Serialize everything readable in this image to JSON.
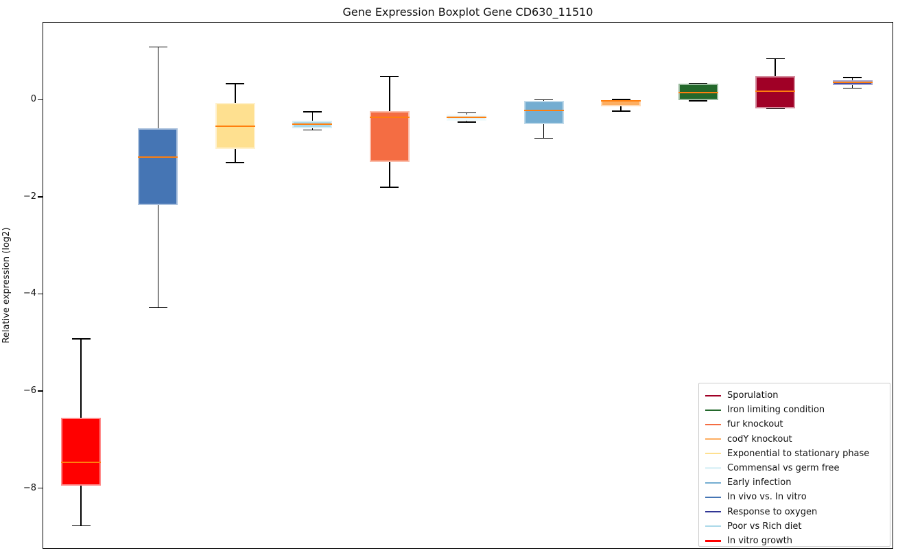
{
  "chart_data": {
    "type": "boxplot",
    "title": "Gene Expression Boxplot Gene CD630_11510",
    "ylabel": "Relative expression (log2)",
    "xlabel": "",
    "ylim": [
      -9.25,
      1.6
    ],
    "yticks": [
      0,
      -2,
      -4,
      -6,
      -8
    ],
    "ytick_labels": [
      "0",
      "−2",
      "−4",
      "−6",
      "−8"
    ],
    "xtick_labels": [],
    "grid": false,
    "legend_position": "lower right",
    "median_color": "#ff7f0e",
    "whisker_color": "#000000",
    "boxes": [
      {
        "condition": "In vitro growth",
        "color": "#ff0000",
        "whisker_low": -8.76,
        "q1": -7.93,
        "median": -7.46,
        "q3": -6.54,
        "whisker_high": -4.91
      },
      {
        "condition": "In vivo vs. In vitro",
        "color": "#4575b4",
        "whisker_low": -4.27,
        "q1": -2.16,
        "median": -1.17,
        "q3": -0.58,
        "whisker_high": 1.1
      },
      {
        "condition": "Exponential to stationary phase",
        "color": "#fee090",
        "whisker_low": -1.28,
        "q1": -1.0,
        "median": -0.54,
        "q3": -0.05,
        "whisker_high": 0.34
      },
      {
        "condition": "Poor vs Rich diet",
        "color": "#abd9e9",
        "whisker_low": -0.61,
        "q1": -0.57,
        "median": -0.49,
        "q3": -0.42,
        "whisker_high": -0.24
      },
      {
        "condition": "fur knockout",
        "color": "#f46d43",
        "whisker_low": -1.79,
        "q1": -1.27,
        "median": -0.35,
        "q3": -0.22,
        "whisker_high": 0.49
      },
      {
        "condition": "Commensal vs germ free",
        "color": "#e0f3f8",
        "whisker_low": -0.45,
        "q1": -0.42,
        "median": -0.35,
        "q3": -0.29,
        "whisker_high": -0.26
      },
      {
        "condition": "Early infection",
        "color": "#74add1",
        "whisker_low": -0.78,
        "q1": -0.49,
        "median": -0.21,
        "q3": -0.01,
        "whisker_high": 0.01
      },
      {
        "condition": "codY knockout",
        "color": "#fdae61",
        "whisker_low": -0.22,
        "q1": -0.13,
        "median": -0.01,
        "q3": 0.01,
        "whisker_high": 0.02
      },
      {
        "condition": "Iron limiting condition",
        "color": "#23682b",
        "whisker_low": -0.01,
        "q1": 0.0,
        "median": 0.16,
        "q3": 0.34,
        "whisker_high": 0.35
      },
      {
        "condition": "Sporulation",
        "color": "#a00026",
        "whisker_low": -0.17,
        "q1": -0.16,
        "median": 0.19,
        "q3": 0.5,
        "whisker_high": 0.86
      },
      {
        "condition": "Response to oxygen",
        "color": "#313695",
        "whisker_low": 0.25,
        "q1": 0.31,
        "median": 0.37,
        "q3": 0.41,
        "whisker_high": 0.47
      }
    ],
    "legend": [
      {
        "label": "Sporulation",
        "color": "#a00026"
      },
      {
        "label": "Iron limiting condition",
        "color": "#23682b"
      },
      {
        "label": "fur knockout",
        "color": "#f46d43"
      },
      {
        "label": "codY knockout",
        "color": "#fdae61"
      },
      {
        "label": "Exponential to stationary phase",
        "color": "#fee090"
      },
      {
        "label": "Commensal vs germ free",
        "color": "#e0f3f8"
      },
      {
        "label": "Early infection",
        "color": "#74add1"
      },
      {
        "label": "In vivo vs. In vitro",
        "color": "#4575b4"
      },
      {
        "label": "Response to oxygen",
        "color": "#313695"
      },
      {
        "label": "Poor vs Rich diet",
        "color": "#abd9e9"
      },
      {
        "label": "In vitro growth",
        "color": "#ff0000"
      }
    ]
  }
}
